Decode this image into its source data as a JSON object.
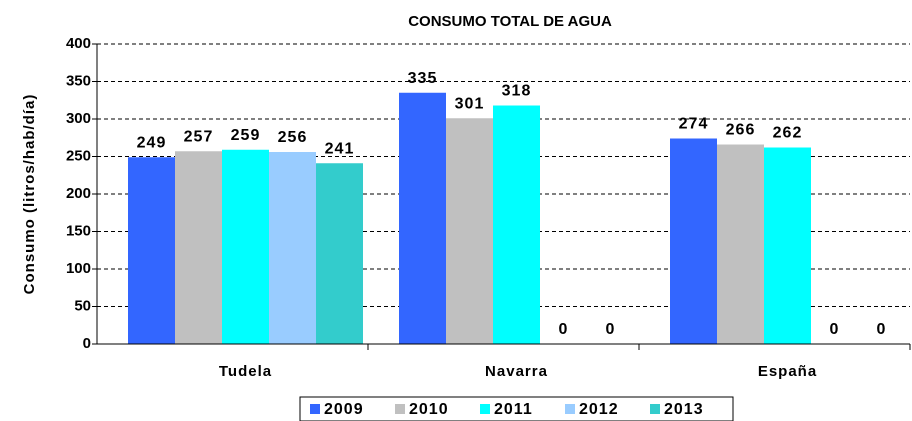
{
  "chart_data": {
    "type": "bar",
    "title": "CONSUMO TOTAL DE AGUA",
    "y_label": "Consumo (litros/hab/día)",
    "categories": [
      "Tudela",
      "Navarra",
      "España"
    ],
    "series": [
      {
        "name": "2009",
        "color": "#3366ff",
        "values": [
          249,
          335,
          274
        ]
      },
      {
        "name": "2010",
        "color": "#c0c0c0",
        "values": [
          257,
          301,
          266
        ]
      },
      {
        "name": "2011",
        "color": "#00ffff",
        "values": [
          259,
          318,
          262
        ]
      },
      {
        "name": "2012",
        "color": "#99ccff",
        "values": [
          256,
          0,
          0
        ]
      },
      {
        "name": "2013",
        "color": "#33cccc",
        "values": [
          241,
          0,
          0
        ]
      }
    ],
    "ylim": [
      0,
      400
    ],
    "yticks": [
      0,
      50,
      100,
      150,
      200,
      250,
      300,
      350,
      400
    ],
    "grid": true
  }
}
